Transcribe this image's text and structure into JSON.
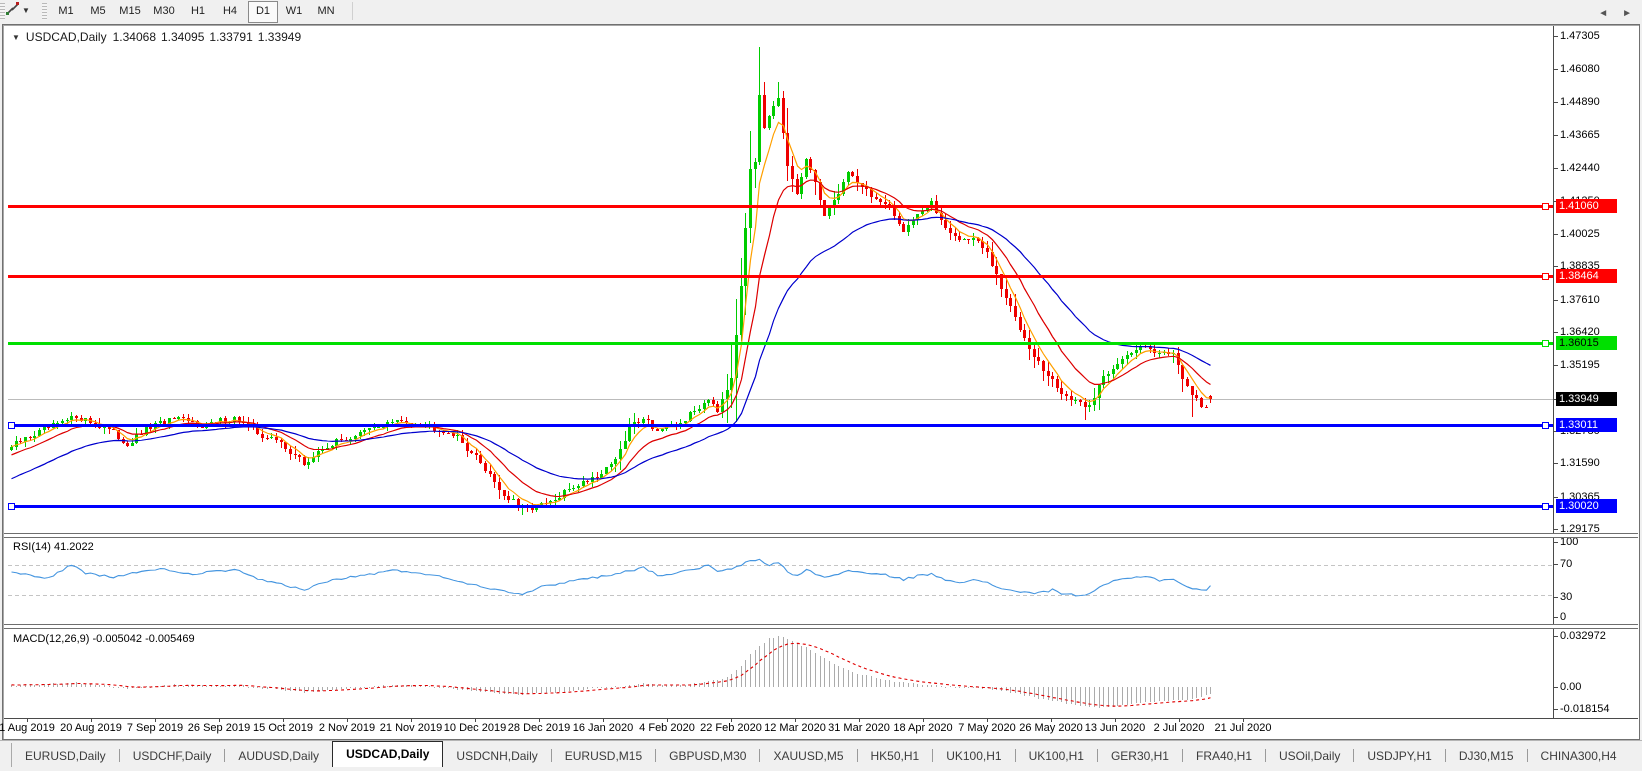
{
  "toolbar": {
    "icon": "chart-tools-icon",
    "timeframes": [
      "M1",
      "M5",
      "M15",
      "M30",
      "H1",
      "H4",
      "D1",
      "W1",
      "MN"
    ],
    "selected_timeframe": "D1"
  },
  "chart": {
    "symbol_title": "USDCAD,Daily",
    "ohlc": {
      "open": "1.34068",
      "high": "1.34095",
      "low": "1.33791",
      "close": "1.33949"
    },
    "price_axis_ticks": [
      "1.47305",
      "1.46080",
      "1.44890",
      "1.43665",
      "1.42440",
      "1.41250",
      "1.40025",
      "1.38835",
      "1.37610",
      "1.36420",
      "1.35195",
      "1.33970",
      "1.32780",
      "1.31590",
      "1.30365",
      "1.29175"
    ],
    "hlines": [
      {
        "price": "1.41060",
        "value": 1.4106,
        "color": "#FF0000",
        "text_color": "#FFFFFF",
        "left_square": false
      },
      {
        "price": "1.38464",
        "value": 1.38464,
        "color": "#FF0000",
        "text_color": "#FFFFFF",
        "left_square": false
      },
      {
        "price": "1.36015",
        "value": 1.36015,
        "color": "#00E000",
        "text_color": "#000000",
        "left_square": false
      },
      {
        "price": "1.33011",
        "value": 1.33011,
        "color": "#0000FF",
        "text_color": "#FFFFFF",
        "left_square": true
      },
      {
        "price": "1.30020",
        "value": 1.3002,
        "color": "#0000FF",
        "text_color": "#FFFFFF",
        "left_square": true
      }
    ],
    "bid_line": {
      "price": "1.33949",
      "value": 1.33949,
      "line_color": "#BBBBBB",
      "badge_bg": "#000000",
      "badge_fg": "#FFFFFF"
    },
    "date_ticks": [
      "1 Aug 2019",
      "20 Aug 2019",
      "7 Sep 2019",
      "26 Sep 2019",
      "15 Oct 2019",
      "2 Nov 2019",
      "21 Nov 2019",
      "10 Dec 2019",
      "28 Dec 2019",
      "16 Jan 2020",
      "4 Feb 2020",
      "22 Feb 2020",
      "12 Mar 2020",
      "31 Mar 2020",
      "18 Apr 2020",
      "7 May 2020",
      "26 May 2020",
      "13 Jun 2020",
      "2 Jul 2020",
      "21 Jul 2020"
    ]
  },
  "rsi": {
    "label": "RSI(14)",
    "value": "41.2022",
    "scale": [
      "100",
      "70",
      "30",
      "0"
    ],
    "level_values": [
      70,
      30
    ],
    "color": "#4696E0"
  },
  "macd": {
    "label": "MACD(12,26,9)",
    "value_main": "-0.005042",
    "value_signal": "-0.005469",
    "scale": [
      "0.032972",
      "0.00",
      "-0.018154"
    ],
    "hist_color": "#ABABAB",
    "signal_color": "#E00000"
  },
  "tabs": {
    "items": [
      "EURUSD,Daily",
      "USDCHF,Daily",
      "AUDUSD,Daily",
      "USDCAD,Daily",
      "USDCNH,Daily",
      "EURUSD,M15",
      "GBPUSD,M30",
      "XAUUSD,M5",
      "HK50,H1",
      "UK100,H1",
      "UK100,H1",
      "GER30,H1",
      "FRA40,H1",
      "USOil,Daily",
      "USDJPY,H1",
      "DJ30,M15",
      "CHINA300,H4"
    ],
    "active": "USDCAD,Daily",
    "active_index": 3,
    "nav_left": "◄",
    "nav_right": "►"
  },
  "colors": {
    "bull": "#00CC00",
    "bear": "#EE0000",
    "ma_fast": "#FFA000",
    "ma_mid": "#DD0000",
    "ma_slow": "#0000CD",
    "bid": "#BBBBBB"
  },
  "chart_data": {
    "type": "candlestick",
    "symbol": "USDCAD",
    "timeframe": "Daily",
    "x_range": [
      "1 Aug 2019",
      "4 Aug 2020"
    ],
    "visible_price_range": [
      1.29175,
      1.47305
    ],
    "num_candles": 259,
    "last_candle": {
      "open": 1.34068,
      "high": 1.34095,
      "low": 1.33791,
      "close": 1.33949
    },
    "moving_averages": [
      {
        "name": "fast",
        "period": 5,
        "color": "#FFA000"
      },
      {
        "name": "mid",
        "period": 13,
        "color": "#DD0000"
      },
      {
        "name": "slow",
        "period": 34,
        "color": "#0000CD"
      }
    ],
    "price_path": [
      [
        0,
        1.322
      ],
      [
        5,
        1.3265
      ],
      [
        10,
        1.33
      ],
      [
        14,
        1.3332
      ],
      [
        20,
        1.3292
      ],
      [
        25,
        1.323
      ],
      [
        30,
        1.3292
      ],
      [
        35,
        1.332
      ],
      [
        42,
        1.33
      ],
      [
        48,
        1.3326
      ],
      [
        53,
        1.327
      ],
      [
        58,
        1.3235
      ],
      [
        63,
        1.3155
      ],
      [
        68,
        1.3225
      ],
      [
        75,
        1.3268
      ],
      [
        82,
        1.3312
      ],
      [
        88,
        1.3305
      ],
      [
        95,
        1.327
      ],
      [
        100,
        1.318
      ],
      [
        103,
        1.312
      ],
      [
        106,
        1.304
      ],
      [
        110,
        1.2995
      ],
      [
        113,
        1.3
      ],
      [
        117,
        1.3018
      ],
      [
        120,
        1.3065
      ],
      [
        127,
        1.3125
      ],
      [
        131,
        1.32
      ],
      [
        133,
        1.329
      ],
      [
        136,
        1.333
      ],
      [
        139,
        1.328
      ],
      [
        143,
        1.3292
      ],
      [
        147,
        1.335
      ],
      [
        150,
        1.34
      ],
      [
        152,
        1.336
      ],
      [
        155,
        1.348
      ],
      [
        157,
        1.38
      ],
      [
        159,
        1.425
      ],
      [
        160,
        1.428
      ],
      [
        161,
        1.452
      ],
      [
        162,
        1.44
      ],
      [
        163,
        1.443
      ],
      [
        165,
        1.449
      ],
      [
        167,
        1.425
      ],
      [
        169,
        1.415
      ],
      [
        171,
        1.428
      ],
      [
        173,
        1.418
      ],
      [
        175,
        1.408
      ],
      [
        177,
        1.412
      ],
      [
        180,
        1.423
      ],
      [
        183,
        1.418
      ],
      [
        186,
        1.413
      ],
      [
        189,
        1.409
      ],
      [
        192,
        1.402
      ],
      [
        195,
        1.408
      ],
      [
        198,
        1.411
      ],
      [
        201,
        1.403
      ],
      [
        204,
        1.398
      ],
      [
        207,
        1.399
      ],
      [
        210,
        1.393
      ],
      [
        213,
        1.38
      ],
      [
        217,
        1.366
      ],
      [
        220,
        1.356
      ],
      [
        222,
        1.35
      ],
      [
        226,
        1.342
      ],
      [
        229,
        1.338
      ],
      [
        232,
        1.337
      ],
      [
        235,
        1.348
      ],
      [
        238,
        1.353
      ],
      [
        241,
        1.356
      ],
      [
        244,
        1.36
      ],
      [
        247,
        1.356
      ],
      [
        250,
        1.357
      ],
      [
        252,
        1.348
      ],
      [
        254,
        1.34
      ],
      [
        256,
        1.3375
      ],
      [
        257,
        1.336
      ],
      [
        258,
        1.3395
      ]
    ],
    "rsi_path": [
      [
        0,
        60
      ],
      [
        4,
        55
      ],
      [
        8,
        52
      ],
      [
        13,
        70
      ],
      [
        16,
        58
      ],
      [
        22,
        53
      ],
      [
        27,
        60
      ],
      [
        33,
        64
      ],
      [
        38,
        57
      ],
      [
        43,
        60
      ],
      [
        48,
        63
      ],
      [
        53,
        50
      ],
      [
        58,
        44
      ],
      [
        63,
        36
      ],
      [
        68,
        48
      ],
      [
        75,
        55
      ],
      [
        82,
        62
      ],
      [
        88,
        59
      ],
      [
        95,
        50
      ],
      [
        100,
        42
      ],
      [
        105,
        36
      ],
      [
        110,
        31
      ],
      [
        114,
        40
      ],
      [
        118,
        45
      ],
      [
        122,
        50
      ],
      [
        127,
        54
      ],
      [
        133,
        62
      ],
      [
        136,
        66
      ],
      [
        139,
        56
      ],
      [
        143,
        58
      ],
      [
        147,
        64
      ],
      [
        150,
        69
      ],
      [
        152,
        60
      ],
      [
        155,
        64
      ],
      [
        157,
        70
      ],
      [
        159,
        74
      ],
      [
        161,
        76
      ],
      [
        163,
        69
      ],
      [
        165,
        73
      ],
      [
        167,
        60
      ],
      [
        169,
        55
      ],
      [
        171,
        63
      ],
      [
        173,
        58
      ],
      [
        175,
        52
      ],
      [
        177,
        56
      ],
      [
        180,
        62
      ],
      [
        183,
        59
      ],
      [
        186,
        57
      ],
      [
        189,
        55
      ],
      [
        192,
        50
      ],
      [
        195,
        55
      ],
      [
        198,
        57
      ],
      [
        201,
        50
      ],
      [
        204,
        47
      ],
      [
        207,
        49
      ],
      [
        210,
        45
      ],
      [
        213,
        38
      ],
      [
        217,
        34
      ],
      [
        220,
        31
      ],
      [
        224,
        36
      ],
      [
        226,
        32
      ],
      [
        229,
        29
      ],
      [
        232,
        30
      ],
      [
        235,
        43
      ],
      [
        238,
        49
      ],
      [
        241,
        52
      ],
      [
        244,
        55
      ],
      [
        247,
        49
      ],
      [
        250,
        51
      ],
      [
        252,
        43
      ],
      [
        254,
        38
      ],
      [
        256,
        35
      ],
      [
        257,
        37
      ],
      [
        258,
        41.2
      ]
    ],
    "macd_hist_path": [
      [
        0,
        0.001
      ],
      [
        5,
        0.0018
      ],
      [
        10,
        0.0022
      ],
      [
        14,
        0.0025
      ],
      [
        20,
        0.0012
      ],
      [
        25,
        -0.0008
      ],
      [
        30,
        0.0002
      ],
      [
        35,
        0.0015
      ],
      [
        42,
        0.0008
      ],
      [
        48,
        0.0014
      ],
      [
        53,
        -0.0004
      ],
      [
        58,
        -0.0018
      ],
      [
        63,
        -0.0032
      ],
      [
        68,
        -0.0022
      ],
      [
        75,
        -0.0006
      ],
      [
        82,
        0.0012
      ],
      [
        88,
        0.0012
      ],
      [
        95,
        -0.0008
      ],
      [
        100,
        -0.0028
      ],
      [
        105,
        -0.0042
      ],
      [
        110,
        -0.0048
      ],
      [
        114,
        -0.004
      ],
      [
        118,
        -0.003
      ],
      [
        122,
        -0.0018
      ],
      [
        127,
        -0.0006
      ],
      [
        133,
        0.0012
      ],
      [
        136,
        0.0022
      ],
      [
        139,
        0.0016
      ],
      [
        143,
        0.0012
      ],
      [
        147,
        0.0022
      ],
      [
        150,
        0.0035
      ],
      [
        153,
        0.005
      ],
      [
        155,
        0.0085
      ],
      [
        157,
        0.014
      ],
      [
        159,
        0.021
      ],
      [
        161,
        0.027
      ],
      [
        163,
        0.031
      ],
      [
        165,
        0.033
      ],
      [
        167,
        0.0315
      ],
      [
        169,
        0.0285
      ],
      [
        171,
        0.026
      ],
      [
        173,
        0.0225
      ],
      [
        175,
        0.0185
      ],
      [
        177,
        0.015
      ],
      [
        180,
        0.011
      ],
      [
        183,
        0.008
      ],
      [
        186,
        0.0058
      ],
      [
        189,
        0.004
      ],
      [
        192,
        0.0026
      ],
      [
        195,
        0.0018
      ],
      [
        198,
        0.0012
      ],
      [
        201,
        0.0005
      ],
      [
        204,
        -0.0002
      ],
      [
        207,
        -0.0006
      ],
      [
        210,
        -0.0012
      ],
      [
        213,
        -0.0025
      ],
      [
        216,
        -0.004
      ],
      [
        219,
        -0.006
      ],
      [
        222,
        -0.008
      ],
      [
        225,
        -0.0095
      ],
      [
        228,
        -0.011
      ],
      [
        231,
        -0.0125
      ],
      [
        234,
        -0.013
      ],
      [
        237,
        -0.0125
      ],
      [
        240,
        -0.0115
      ],
      [
        243,
        -0.0105
      ],
      [
        246,
        -0.0095
      ],
      [
        249,
        -0.009
      ],
      [
        252,
        -0.0088
      ],
      [
        254,
        -0.008
      ],
      [
        256,
        -0.0065
      ],
      [
        257,
        -0.0055
      ],
      [
        258,
        -0.005
      ]
    ]
  }
}
